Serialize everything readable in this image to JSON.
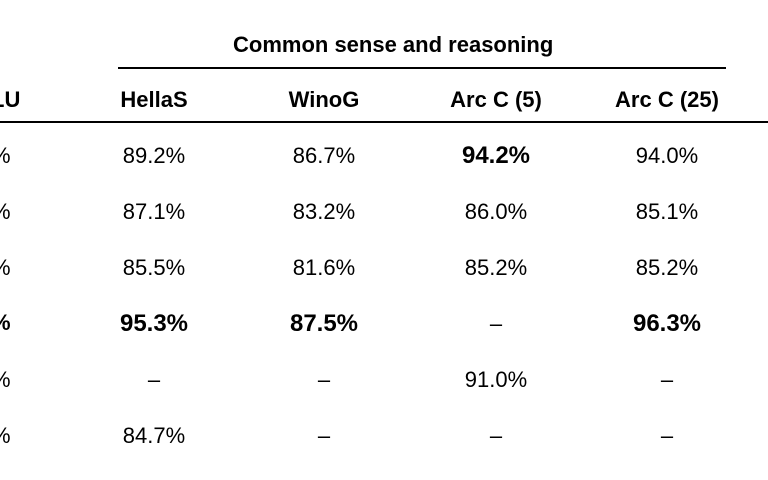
{
  "group_header": "Common sense and reasoning",
  "partial_left_header": "LU",
  "columns": [
    "HellaS",
    "WinoG",
    "Arc C (5)",
    "Arc C (25)"
  ],
  "rows": [
    {
      "left": "%",
      "left_bold": false,
      "cells": [
        {
          "v": "89.2%",
          "b": false
        },
        {
          "v": "86.7%",
          "b": false
        },
        {
          "v": "94.2%",
          "b": true
        },
        {
          "v": "94.0%",
          "b": false
        }
      ]
    },
    {
      "left": "%",
      "left_bold": false,
      "cells": [
        {
          "v": "87.1%",
          "b": false
        },
        {
          "v": "83.2%",
          "b": false
        },
        {
          "v": "86.0%",
          "b": false
        },
        {
          "v": "85.1%",
          "b": false
        }
      ]
    },
    {
      "left": "%",
      "left_bold": false,
      "cells": [
        {
          "v": "85.5%",
          "b": false
        },
        {
          "v": "81.6%",
          "b": false
        },
        {
          "v": "85.2%",
          "b": false
        },
        {
          "v": "85.2%",
          "b": false
        }
      ]
    },
    {
      "left": "%",
      "left_bold": true,
      "cells": [
        {
          "v": "95.3%",
          "b": true
        },
        {
          "v": "87.5%",
          "b": true
        },
        {
          "v": "–",
          "b": false
        },
        {
          "v": "96.3%",
          "b": true
        }
      ]
    },
    {
      "left": "%",
      "left_bold": false,
      "cells": [
        {
          "v": "–",
          "b": false
        },
        {
          "v": "–",
          "b": false
        },
        {
          "v": "91.0%",
          "b": false
        },
        {
          "v": "–",
          "b": false
        }
      ]
    },
    {
      "left": "%",
      "left_bold": false,
      "cells": [
        {
          "v": "84.7%",
          "b": false
        },
        {
          "v": "–",
          "b": false
        },
        {
          "v": "–",
          "b": false
        },
        {
          "v": "–",
          "b": false
        }
      ]
    }
  ]
}
